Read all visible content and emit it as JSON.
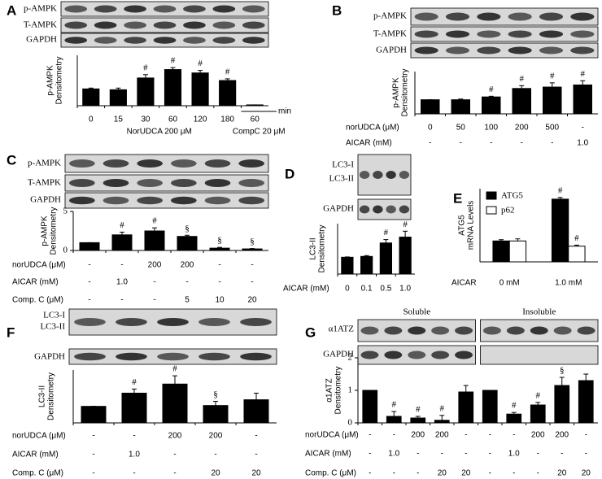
{
  "chart_data": [
    {
      "type": "bar",
      "panel": "A",
      "blot_labels": [
        "p-AMPK",
        "T-AMPK",
        "GAPDH"
      ],
      "ylabel": [
        "p-AMPK",
        "Densitometry"
      ],
      "ylim": [
        0,
        3
      ],
      "color": "#000000",
      "values": [
        1.0,
        0.95,
        1.65,
        2.15,
        1.95,
        1.5,
        0.05
      ],
      "errors": [
        0.05,
        0.1,
        0.2,
        0.12,
        0.15,
        0.1,
        0
      ],
      "annotations": [
        null,
        null,
        "#",
        "#",
        "#",
        "#",
        null
      ],
      "categories": [
        "0",
        "15",
        "30",
        "60",
        "120",
        "180",
        "60"
      ],
      "x_unit": "min",
      "group_labels": [
        "NorUDCA  200 μM",
        "CompC  20 μM"
      ]
    },
    {
      "type": "bar",
      "panel": "B",
      "blot_labels": [
        "p-AMPK",
        "T-AMPK",
        "GAPDH"
      ],
      "ylabel": [
        "p-AMPK",
        "Densitometry"
      ],
      "ylim": [
        0,
        3
      ],
      "color": "#000000",
      "values": [
        1.0,
        1.0,
        1.2,
        1.8,
        1.9,
        2.05
      ],
      "errors": [
        0,
        0.05,
        0.05,
        0.2,
        0.3,
        0.3
      ],
      "annotations": [
        null,
        null,
        "#",
        "#",
        "#",
        "#"
      ],
      "conditions": [
        {
          "name": "norUDCA (μM)",
          "values": [
            "0",
            "50",
            "100",
            "200",
            "500",
            "-"
          ]
        },
        {
          "name": "AICAR (mM)",
          "values": [
            "-",
            "-",
            "-",
            "-",
            "-",
            "1.0"
          ]
        }
      ]
    },
    {
      "type": "bar",
      "panel": "C",
      "blot_labels": [
        "p-AMPK",
        "T-AMPK",
        "GAPDH"
      ],
      "ylabel": [
        "p-AMPK",
        "Densitometry"
      ],
      "ylim": [
        0,
        5
      ],
      "yticks": [
        0,
        5
      ],
      "color": "#000000",
      "values": [
        1.0,
        2.0,
        2.5,
        1.8,
        0.3,
        0.2
      ],
      "errors": [
        0,
        0.35,
        0.4,
        0.15,
        0.1,
        0.05
      ],
      "annotations": [
        null,
        "#",
        "#",
        "§",
        "§",
        "§"
      ],
      "conditions": [
        {
          "name": "norUDCA (μM)",
          "values": [
            "-",
            "-",
            "200",
            "200",
            "-",
            "-"
          ]
        },
        {
          "name": "AICAR (mM)",
          "values": [
            "-",
            "1.0",
            "-",
            "-",
            "-",
            "-"
          ]
        },
        {
          "name": "Comp. C (μM)",
          "values": [
            "-",
            "-",
            "-",
            "5",
            "10",
            "20"
          ]
        }
      ]
    },
    {
      "type": "bar",
      "panel": "D",
      "blot_labels": [
        "LC3-I",
        "LC3-II",
        "GAPDH"
      ],
      "ylabel": [
        "LC3-II",
        "Densitometry"
      ],
      "ylim": [
        0,
        3
      ],
      "color": "#000000",
      "values": [
        1.0,
        1.05,
        1.85,
        2.2
      ],
      "errors": [
        0.02,
        0.05,
        0.2,
        0.35
      ],
      "annotations": [
        null,
        null,
        "#",
        "#"
      ],
      "conditions": [
        {
          "name": "AICAR (mM)",
          "values": [
            "0",
            "0.1",
            "0.5",
            "1.0"
          ]
        }
      ]
    },
    {
      "type": "grouped_bar",
      "panel": "E",
      "ylabel": [
        "ATG5",
        "mRNA  Levels"
      ],
      "ylim": [
        0,
        3.5
      ],
      "x_name": "AICAR",
      "categories": [
        "0 mM",
        "1.0 mM"
      ],
      "series": [
        {
          "name": "ATG5",
          "color": "#000000",
          "values": [
            1.0,
            3.0
          ],
          "errors": [
            0.06,
            0.08
          ],
          "annotations": [
            null,
            "#"
          ]
        },
        {
          "name": "p62",
          "color": "#ffffff",
          "values": [
            1.0,
            0.75
          ],
          "errors": [
            0.1,
            0.05
          ],
          "annotations": [
            null,
            "#"
          ]
        }
      ]
    },
    {
      "type": "bar",
      "panel": "F",
      "blot_labels": [
        "LC3-I",
        "LC3-II",
        "GAPDH"
      ],
      "ylabel": [
        "LC3-II",
        "Densitometry"
      ],
      "ylim": [
        0,
        3.2
      ],
      "color": "#000000",
      "values": [
        1.0,
        1.8,
        2.35,
        1.05,
        1.4
      ],
      "errors": [
        0,
        0.25,
        0.5,
        0.25,
        0.4
      ],
      "annotations": [
        null,
        "#",
        "#",
        "§",
        null
      ],
      "conditions": [
        {
          "name": "norUDCA (μM)",
          "values": [
            "-",
            "-",
            "200",
            "200",
            "-"
          ]
        },
        {
          "name": "AICAR (mM)",
          "values": [
            "-",
            "1.0",
            "-",
            "-",
            "-"
          ]
        },
        {
          "name": "Comp. C (μM)",
          "values": [
            "-",
            "-",
            "-",
            "20",
            "20"
          ]
        }
      ]
    },
    {
      "type": "bar",
      "panel": "G",
      "blot_headers": [
        "Soluble",
        "Insoluble"
      ],
      "blot_labels": [
        "α1ATZ",
        "GAPDH"
      ],
      "ylabel": [
        "α1ATZ",
        "Densitometry"
      ],
      "ylim": [
        0,
        2
      ],
      "yticks": [
        0,
        1,
        2
      ],
      "color": "#000000",
      "values": [
        1.0,
        0.2,
        0.15,
        0.08,
        0.95,
        1.0,
        0.27,
        0.55,
        1.15,
        1.3
      ],
      "errors": [
        0,
        0.15,
        0.05,
        0.15,
        0.2,
        0,
        0.05,
        0.08,
        0.25,
        0.2
      ],
      "annotations": [
        null,
        "#",
        "#",
        "#",
        null,
        null,
        "#",
        "#",
        "§",
        null
      ],
      "conditions": [
        {
          "name": "norUDCA (μM)",
          "values": [
            "-",
            "-",
            "200",
            "200",
            "-",
            "-",
            "-",
            "200",
            "200",
            "-"
          ]
        },
        {
          "name": "AICAR (mM)",
          "values": [
            "-",
            "1.0",
            "-",
            "-",
            "-",
            "-",
            "1.0",
            "-",
            "-",
            "-"
          ]
        },
        {
          "name": "Comp. C (μM)",
          "values": [
            "-",
            "-",
            "-",
            "20",
            "20",
            "-",
            "-",
            "-",
            "20",
            "20"
          ]
        }
      ]
    }
  ]
}
